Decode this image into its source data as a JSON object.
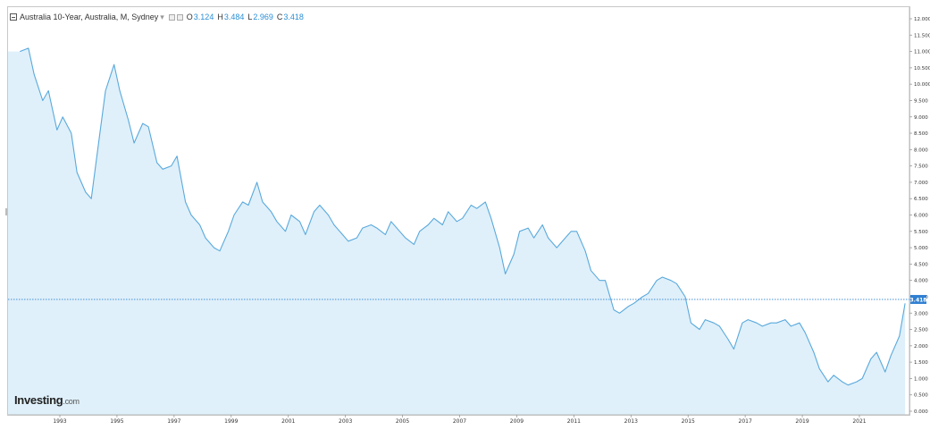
{
  "legend": {
    "title": "Australia 10-Year, Australia, M, Sydney",
    "open_key": "O",
    "open": "3.124",
    "high_key": "H",
    "high": "3.484",
    "low_key": "L",
    "low": "2.969",
    "close_key": "C",
    "close": "3.418"
  },
  "logo": {
    "main": "Investing",
    "suffix": ".com"
  },
  "colors": {
    "line": "#5aa9dc",
    "fill": "#dff0fa",
    "price_label_bg": "#2f7fd2",
    "dotted_line": "#2f7fd2"
  },
  "chart_data": {
    "type": "area",
    "title": "Australia 10-Year, Australia, M, Sydney",
    "xlabel": "",
    "ylabel": "",
    "ylim": [
      0,
      12.0
    ],
    "y_ticks": [
      "0.000",
      "0.500",
      "1.000",
      "1.500",
      "2.000",
      "2.500",
      "3.000",
      "3.500",
      "4.000",
      "4.500",
      "5.000",
      "5.500",
      "6.000",
      "6.500",
      "7.000",
      "7.500",
      "8.000",
      "8.500",
      "9.000",
      "9.500",
      "10.000",
      "10.500",
      "11.000",
      "11.500",
      "12.000"
    ],
    "x_ticks": [
      "1993",
      "1995",
      "1997",
      "1999",
      "2001",
      "2003",
      "2005",
      "2007",
      "2009",
      "2011",
      "2013",
      "2015",
      "2017",
      "2019",
      "2021"
    ],
    "last_value_label": "3.418",
    "grid": false,
    "x": [
      1991.6,
      1991.9,
      1992.1,
      1992.4,
      1992.6,
      1992.9,
      1993.1,
      1993.4,
      1993.6,
      1993.9,
      1994.1,
      1994.4,
      1994.6,
      1994.9,
      1995.1,
      1995.4,
      1995.6,
      1995.9,
      1996.1,
      1996.4,
      1996.6,
      1996.9,
      1997.1,
      1997.4,
      1997.6,
      1997.9,
      1998.1,
      1998.4,
      1998.6,
      1998.9,
      1999.1,
      1999.4,
      1999.6,
      1999.9,
      2000.1,
      2000.4,
      2000.6,
      2000.9,
      2001.1,
      2001.4,
      2001.6,
      2001.9,
      2002.1,
      2002.4,
      2002.6,
      2002.9,
      2003.1,
      2003.4,
      2003.6,
      2003.9,
      2004.1,
      2004.4,
      2004.6,
      2004.9,
      2005.1,
      2005.4,
      2005.6,
      2005.9,
      2006.1,
      2006.4,
      2006.6,
      2006.9,
      2007.1,
      2007.4,
      2007.6,
      2007.9,
      2008.1,
      2008.4,
      2008.6,
      2008.9,
      2009.1,
      2009.4,
      2009.6,
      2009.9,
      2010.1,
      2010.4,
      2010.6,
      2010.9,
      2011.1,
      2011.4,
      2011.6,
      2011.9,
      2012.1,
      2012.4,
      2012.6,
      2012.9,
      2013.1,
      2013.4,
      2013.6,
      2013.9,
      2014.1,
      2014.4,
      2014.6,
      2014.9,
      2015.1,
      2015.4,
      2015.6,
      2015.9,
      2016.1,
      2016.4,
      2016.6,
      2016.9,
      2017.1,
      2017.4,
      2017.6,
      2017.9,
      2018.1,
      2018.4,
      2018.6,
      2018.9,
      2019.1,
      2019.4,
      2019.6,
      2019.9,
      2020.1,
      2020.4,
      2020.6,
      2020.9,
      2021.1,
      2021.4,
      2021.6,
      2021.9,
      2022.1,
      2022.4,
      2022.6
    ],
    "series": [
      {
        "values": [
          11.0,
          11.1,
          10.3,
          9.5,
          9.8,
          8.6,
          9.0,
          8.5,
          7.3,
          6.7,
          6.5,
          8.5,
          9.8,
          10.6,
          9.8,
          8.9,
          8.2,
          8.8,
          8.7,
          7.6,
          7.4,
          7.5,
          7.8,
          6.4,
          6.0,
          5.7,
          5.3,
          5.0,
          4.9,
          5.5,
          6.0,
          6.4,
          6.3,
          7.0,
          6.4,
          6.1,
          5.8,
          5.5,
          6.0,
          5.8,
          5.4,
          6.1,
          6.3,
          6.0,
          5.7,
          5.4,
          5.2,
          5.3,
          5.6,
          5.7,
          5.6,
          5.4,
          5.8,
          5.5,
          5.3,
          5.1,
          5.5,
          5.7,
          5.9,
          5.7,
          6.1,
          5.8,
          5.9,
          6.3,
          6.2,
          6.4,
          5.9,
          5.0,
          4.2,
          4.8,
          5.5,
          5.6,
          5.3,
          5.7,
          5.3,
          5.0,
          5.2,
          5.5,
          5.5,
          4.9,
          4.3,
          4.0,
          4.0,
          3.1,
          3.0,
          3.2,
          3.3,
          3.5,
          3.6,
          4.0,
          4.1,
          4.0,
          3.9,
          3.5,
          2.7,
          2.5,
          2.8,
          2.7,
          2.6,
          2.2,
          1.9,
          2.7,
          2.8,
          2.7,
          2.6,
          2.7,
          2.7,
          2.8,
          2.6,
          2.7,
          2.4,
          1.8,
          1.3,
          0.9,
          1.1,
          0.9,
          0.8,
          0.9,
          1.0,
          1.6,
          1.8,
          1.2,
          1.7,
          2.3,
          3.3
        ]
      }
    ]
  }
}
